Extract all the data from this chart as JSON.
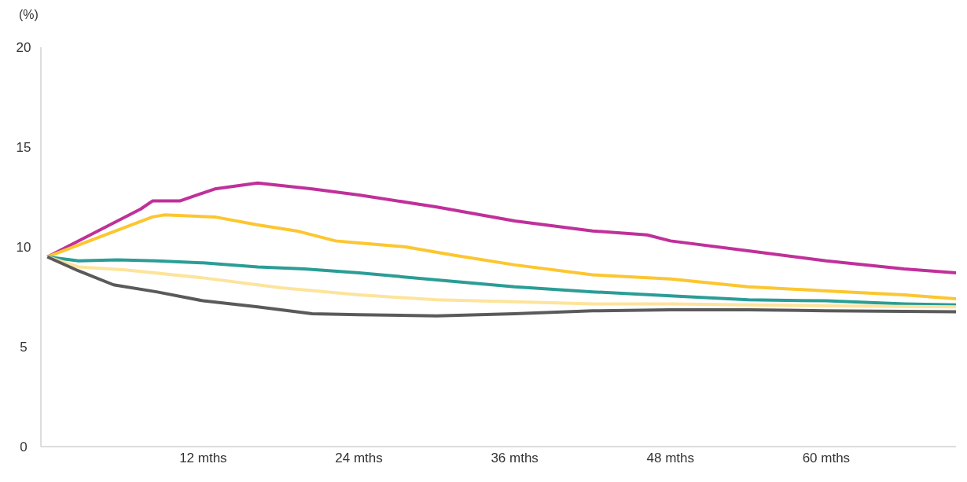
{
  "chart_data": {
    "type": "line",
    "ylabel": "(%)",
    "xlim": [
      -0.5,
      70
    ],
    "ylim": [
      0,
      20
    ],
    "yticks": [
      0,
      5,
      10,
      15,
      20
    ],
    "xticks": [
      {
        "value": 12,
        "label": "12 mths"
      },
      {
        "value": 24,
        "label": "24 mths"
      },
      {
        "value": 36,
        "label": "36 mths"
      },
      {
        "value": 48,
        "label": "48 mths"
      },
      {
        "value": 60,
        "label": "60 mths"
      }
    ],
    "grid": false,
    "legend": false,
    "marker": "none",
    "line_style": "solid",
    "series": [
      {
        "color": "#c0309a",
        "x": [
          0,
          7.2,
          8.1,
          10.2,
          12.9,
          16.2,
          20.4,
          24,
          30,
          36,
          42,
          46.2,
          48,
          54,
          60,
          66,
          70
        ],
        "values": [
          9.5,
          11.9,
          12.3,
          12.3,
          12.9,
          13.2,
          12.9,
          12.6,
          12.0,
          11.3,
          10.8,
          10.6,
          10.3,
          9.8,
          9.3,
          8.9,
          8.7
        ]
      },
      {
        "color": "#fcc630",
        "x": [
          0,
          8.1,
          9,
          12.9,
          16.2,
          19.2,
          22.2,
          24,
          27.6,
          31.2,
          36,
          42,
          48,
          54,
          60,
          66,
          70
        ],
        "values": [
          9.5,
          11.5,
          11.6,
          11.5,
          11.1,
          10.8,
          10.3,
          10.2,
          10.0,
          9.6,
          9.1,
          8.6,
          8.4,
          8.0,
          7.8,
          7.6,
          7.4
        ]
      },
      {
        "color": "#2a9d96",
        "x": [
          0,
          2.4,
          5.4,
          8.4,
          12,
          16.2,
          19.8,
          24,
          30,
          36,
          42,
          48,
          54,
          60,
          66,
          70
        ],
        "values": [
          9.5,
          9.3,
          9.35,
          9.3,
          9.2,
          9.0,
          8.9,
          8.7,
          8.35,
          8.0,
          7.75,
          7.55,
          7.35,
          7.3,
          7.15,
          7.1
        ]
      },
      {
        "color": "#fde49c",
        "x": [
          0,
          2.4,
          6,
          12,
          18,
          24,
          30,
          36,
          42,
          48,
          54,
          60,
          70
        ],
        "values": [
          9.5,
          9.0,
          8.85,
          8.45,
          7.95,
          7.6,
          7.35,
          7.25,
          7.15,
          7.15,
          7.1,
          7.05,
          7.0
        ]
      },
      {
        "color": "#5a5a5a",
        "x": [
          0,
          2.4,
          5.1,
          8.4,
          12,
          16.2,
          20.4,
          24,
          30,
          36,
          42,
          48,
          54,
          60,
          70
        ],
        "values": [
          9.5,
          8.8,
          8.1,
          7.75,
          7.3,
          7.0,
          6.65,
          6.6,
          6.55,
          6.65,
          6.8,
          6.85,
          6.85,
          6.8,
          6.75
        ]
      }
    ]
  }
}
